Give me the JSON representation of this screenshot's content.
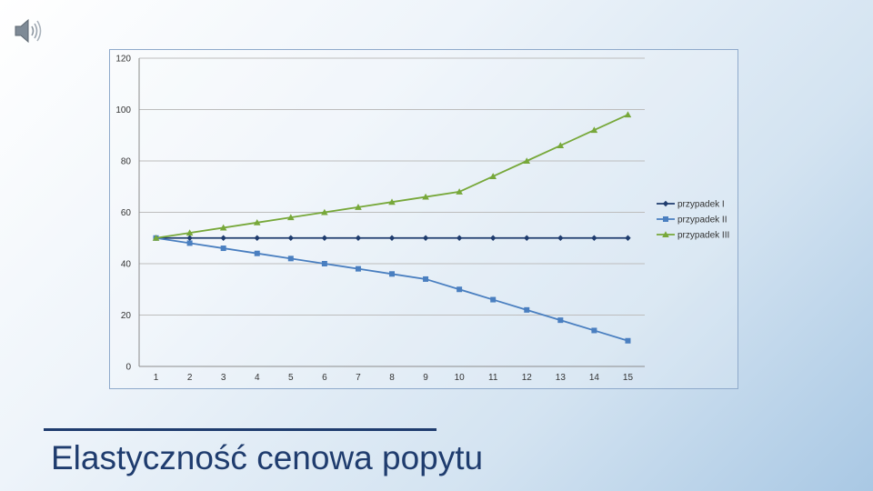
{
  "slide": {
    "title": "Elastyczność cenowa popytu"
  },
  "icons": {
    "speaker": "speaker-icon"
  },
  "colors": {
    "series_1": "#1f3c6e",
    "series_2": "#4a7fc0",
    "series_3": "#77a83a",
    "title": "#1f3c6e",
    "gridline": "#bdbdbd"
  },
  "chart_data": {
    "type": "line",
    "title": "",
    "xlabel": "",
    "ylabel": "",
    "categories": [
      "1",
      "2",
      "3",
      "4",
      "5",
      "6",
      "7",
      "8",
      "9",
      "10",
      "11",
      "12",
      "13",
      "14",
      "15"
    ],
    "y_ticks": [
      "0",
      "20",
      "40",
      "60",
      "80",
      "100",
      "120"
    ],
    "ylim": [
      0,
      120
    ],
    "grid": true,
    "legend_position": "right",
    "series": [
      {
        "name": "przypadek I",
        "marker": "diamond",
        "color": "#1f3c6e",
        "values": [
          50,
          50,
          50,
          50,
          50,
          50,
          50,
          50,
          50,
          50,
          50,
          50,
          50,
          50,
          50
        ]
      },
      {
        "name": "przypadek II",
        "marker": "square",
        "color": "#4a7fc0",
        "values": [
          50,
          48,
          46,
          44,
          42,
          40,
          38,
          36,
          34,
          30,
          26,
          22,
          18,
          14,
          10
        ]
      },
      {
        "name": "przypadek III",
        "marker": "triangle",
        "color": "#77a83a",
        "values": [
          50,
          52,
          54,
          56,
          58,
          60,
          62,
          64,
          66,
          68,
          74,
          80,
          86,
          92,
          98
        ]
      }
    ]
  }
}
